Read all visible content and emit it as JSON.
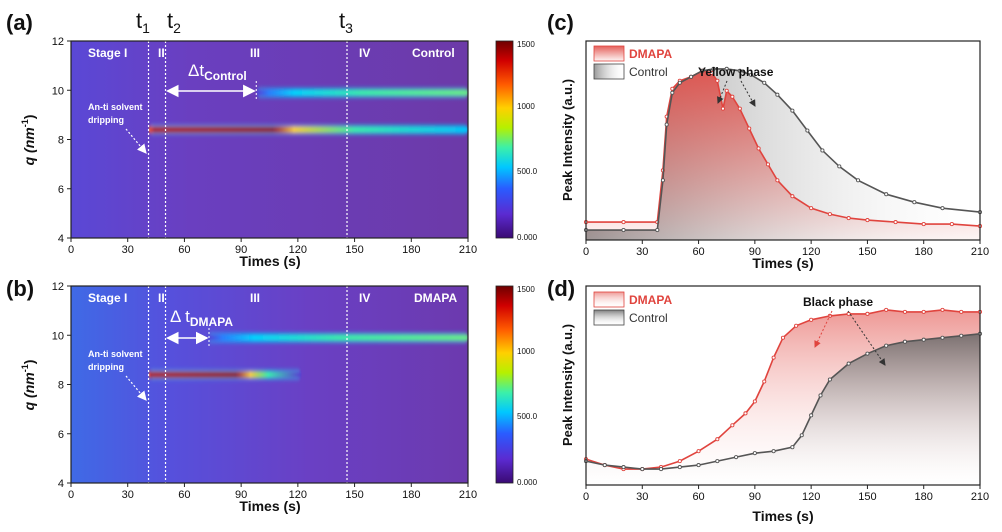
{
  "colors": {
    "dmapa": "#e0443e",
    "control": "#555555",
    "heatmap_bg": "#6a3fb0",
    "dashed": "#ffffff",
    "colormap": [
      "#3a0a73",
      "#5b2ad0",
      "#2a5bff",
      "#00c8ff",
      "#3cf0a8",
      "#b6f000",
      "#ffd000",
      "#ff5a00",
      "#d00000",
      "#6e0000"
    ]
  },
  "panels": {
    "a": {
      "label": "(a)",
      "time_marks": [
        "t",
        "1",
        "t",
        "2",
        "t",
        "3"
      ],
      "stage_labels": [
        "Stage I",
        "II",
        "III",
        "IV"
      ],
      "tag": "Control",
      "delta_label_main": "Δt",
      "delta_label_sub": "Control",
      "annotation": [
        "An-ti solvent",
        "dripping"
      ],
      "xlabel": "Times (s)",
      "ylabel": "q (nm",
      "ylabel_sup": "-1",
      "ylabel_close": ")"
    },
    "b": {
      "label": "(b)",
      "stage_labels": [
        "Stage I",
        "II",
        "III",
        "IV"
      ],
      "tag": "DMAPA",
      "delta_label_main": "Δ t",
      "delta_label_sub": "DMAPA",
      "annotation": [
        "An-ti solvent",
        "dripping"
      ],
      "xlabel": "Times (s)",
      "ylabel": "q (nm",
      "ylabel_sup": "-1",
      "ylabel_close": ")"
    },
    "c": {
      "label": "(c)",
      "legend": [
        "DMAPA",
        "Control"
      ],
      "annotation": "Yellow phase",
      "xlabel": "Times (s)",
      "ylabel": "Peak Intensity (a.u.)"
    },
    "d": {
      "label": "(d)",
      "legend": [
        "DMAPA",
        "Control"
      ],
      "annotation": "Black phase",
      "xlabel": "Times (s)",
      "ylabel": "Peak Intensity (a.u.)"
    }
  },
  "colorbar_ticks": [
    "1500",
    "1000",
    "500.0",
    "0.000"
  ],
  "chart_data": [
    {
      "type": "heatmap",
      "panel": "a",
      "x_range": [
        0,
        210
      ],
      "y_range": [
        4,
        12
      ],
      "x_ticks": [
        0,
        30,
        60,
        90,
        120,
        150,
        180,
        210
      ],
      "y_ticks": [
        4,
        6,
        8,
        10,
        12
      ],
      "color_range": [
        0,
        1500
      ],
      "stage_boundaries": [
        41,
        50,
        146
      ],
      "delta_t": [
        50,
        98
      ],
      "bands": [
        {
          "q": 8.4,
          "start": 41,
          "end": 210,
          "peak_end": 118,
          "fade_end": 210
        },
        {
          "q": 9.9,
          "start": 98,
          "end": 210,
          "peak_end": 210,
          "fade_end": 210
        }
      ],
      "tag": "Control"
    },
    {
      "type": "heatmap",
      "panel": "b",
      "x_range": [
        0,
        210
      ],
      "y_range": [
        4,
        12
      ],
      "x_ticks": [
        0,
        30,
        60,
        90,
        120,
        150,
        180,
        210
      ],
      "y_ticks": [
        4,
        6,
        8,
        10,
        12
      ],
      "color_range": [
        0,
        1500
      ],
      "stage_boundaries": [
        41,
        50,
        146
      ],
      "delta_t": [
        50,
        73
      ],
      "bands": [
        {
          "q": 8.4,
          "start": 41,
          "end": 122,
          "peak_end": 95,
          "fade_end": 122
        },
        {
          "q": 9.9,
          "start": 72,
          "end": 210,
          "peak_end": 210,
          "fade_end": 210
        }
      ],
      "tag": "DMAPA"
    },
    {
      "type": "line",
      "panel": "c",
      "x_range": [
        0,
        210
      ],
      "y_range": [
        0,
        1
      ],
      "x_ticks": [
        0,
        30,
        60,
        90,
        120,
        150,
        180,
        210
      ],
      "series": [
        {
          "name": "DMAPA",
          "x": [
            0,
            20,
            38,
            41,
            43,
            46,
            50,
            56,
            62,
            67,
            70,
            73,
            75,
            78,
            82,
            87,
            92,
            97,
            102,
            110,
            120,
            130,
            140,
            150,
            165,
            180,
            195,
            210
          ],
          "y": [
            0.09,
            0.09,
            0.09,
            0.35,
            0.62,
            0.76,
            0.8,
            0.82,
            0.85,
            0.84,
            0.8,
            0.66,
            0.75,
            0.72,
            0.66,
            0.56,
            0.46,
            0.38,
            0.3,
            0.22,
            0.16,
            0.13,
            0.11,
            0.1,
            0.09,
            0.08,
            0.08,
            0.07
          ]
        },
        {
          "name": "Control",
          "x": [
            0,
            20,
            38,
            41,
            43,
            46,
            50,
            56,
            62,
            68,
            75,
            82,
            88,
            95,
            102,
            110,
            118,
            126,
            135,
            145,
            160,
            175,
            190,
            210
          ],
          "y": [
            0.05,
            0.05,
            0.05,
            0.3,
            0.58,
            0.74,
            0.79,
            0.82,
            0.85,
            0.86,
            0.86,
            0.85,
            0.83,
            0.79,
            0.73,
            0.65,
            0.55,
            0.45,
            0.37,
            0.3,
            0.23,
            0.19,
            0.16,
            0.14
          ]
        }
      ]
    },
    {
      "type": "line",
      "panel": "d",
      "x_range": [
        0,
        210
      ],
      "y_range": [
        0,
        1
      ],
      "x_ticks": [
        0,
        30,
        60,
        90,
        120,
        150,
        180,
        210
      ],
      "series": [
        {
          "name": "DMAPA",
          "x": [
            0,
            10,
            20,
            30,
            40,
            50,
            60,
            70,
            78,
            85,
            90,
            95,
            100,
            105,
            112,
            120,
            130,
            140,
            150,
            160,
            170,
            180,
            190,
            200,
            210
          ],
          "y": [
            0.13,
            0.1,
            0.08,
            0.08,
            0.09,
            0.12,
            0.17,
            0.23,
            0.3,
            0.36,
            0.42,
            0.52,
            0.64,
            0.74,
            0.8,
            0.83,
            0.85,
            0.86,
            0.86,
            0.88,
            0.87,
            0.87,
            0.88,
            0.87,
            0.87
          ]
        },
        {
          "name": "Control",
          "x": [
            0,
            10,
            20,
            30,
            40,
            50,
            60,
            70,
            80,
            90,
            100,
            110,
            115,
            120,
            125,
            130,
            140,
            150,
            160,
            170,
            180,
            190,
            200,
            210
          ],
          "y": [
            0.12,
            0.1,
            0.09,
            0.08,
            0.08,
            0.09,
            0.1,
            0.12,
            0.14,
            0.16,
            0.17,
            0.19,
            0.25,
            0.35,
            0.45,
            0.53,
            0.61,
            0.66,
            0.7,
            0.72,
            0.73,
            0.74,
            0.75,
            0.76
          ]
        }
      ]
    }
  ]
}
